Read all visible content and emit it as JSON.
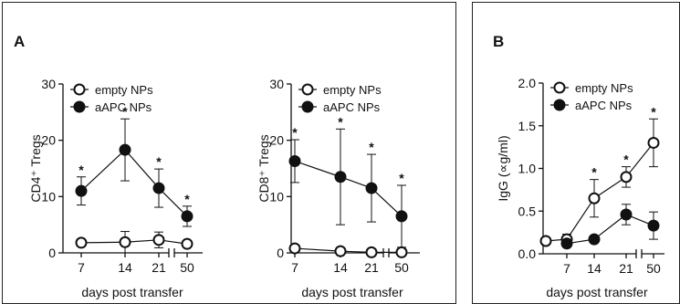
{
  "panels": [
    {
      "letter": "A"
    },
    {
      "letter": "B"
    }
  ],
  "chart_data": [
    {
      "type": "line",
      "panel": "A",
      "ylabel": "CD4⁺ Tregs",
      "xlabel": "days post transfer",
      "x": [
        "7",
        "14",
        "21",
        "50"
      ],
      "ylim": [
        0,
        30
      ],
      "yticks": [
        "0",
        "10",
        "20",
        "30"
      ],
      "axis_break_x": true,
      "legend": "top-left",
      "series": [
        {
          "name": "empty NPs",
          "marker": "open-circle",
          "values": [
            1.8,
            1.9,
            2.3,
            1.6
          ],
          "errors": [
            0.4,
            1.9,
            1.4,
            0.4
          ]
        },
        {
          "name": "aAPC NPs",
          "marker": "filled-circle",
          "values": [
            11.0,
            18.3,
            11.5,
            6.5
          ],
          "errors": [
            2.5,
            5.5,
            3.4,
            1.8
          ]
        }
      ],
      "annotations": [
        "*",
        "*",
        "*",
        "*"
      ]
    },
    {
      "type": "line",
      "panel": "A",
      "ylabel": "CD8⁺ Tregs",
      "xlabel": "days post transfer",
      "x": [
        "7",
        "14",
        "21",
        "50"
      ],
      "ylim": [
        0,
        30
      ],
      "yticks": [
        "0",
        "10",
        "20",
        "30"
      ],
      "axis_break_x": true,
      "legend": "top-right",
      "series": [
        {
          "name": "empty NPs",
          "marker": "open-circle",
          "values": [
            0.8,
            0.3,
            0.1,
            0.1
          ],
          "errors": [
            0.3,
            0.2,
            0.1,
            0.1
          ]
        },
        {
          "name": "aAPC NPs",
          "marker": "filled-circle",
          "values": [
            16.3,
            13.5,
            11.5,
            6.5
          ],
          "errors": [
            3.8,
            8.5,
            6.0,
            5.5
          ]
        }
      ],
      "annotations": [
        "*",
        "*",
        "*",
        "*"
      ]
    },
    {
      "type": "line",
      "panel": "B",
      "ylabel": "IgG (∝g/ml)",
      "xlabel": "days post transfer",
      "x": [
        "7",
        "14",
        "21",
        "50"
      ],
      "ylim": [
        0,
        2.0
      ],
      "yticks": [
        "0.0",
        "0.5",
        "1.0",
        "1.5",
        "2.0"
      ],
      "axis_break_x": true,
      "legend": "top-left",
      "series": [
        {
          "name": "empty NPs",
          "marker": "open-circle",
          "values": [
            0.17,
            0.65,
            0.9,
            1.3
          ],
          "errors": [
            0.06,
            0.22,
            0.12,
            0.28
          ],
          "extra_point": {
            "x": 0,
            "value": 0.15
          }
        },
        {
          "name": "aAPC NPs",
          "marker": "filled-circle",
          "values": [
            0.12,
            0.17,
            0.46,
            0.33
          ],
          "errors": [
            0.03,
            0.02,
            0.12,
            0.16
          ]
        }
      ],
      "annotations": [
        "*",
        "*",
        "*"
      ]
    }
  ]
}
